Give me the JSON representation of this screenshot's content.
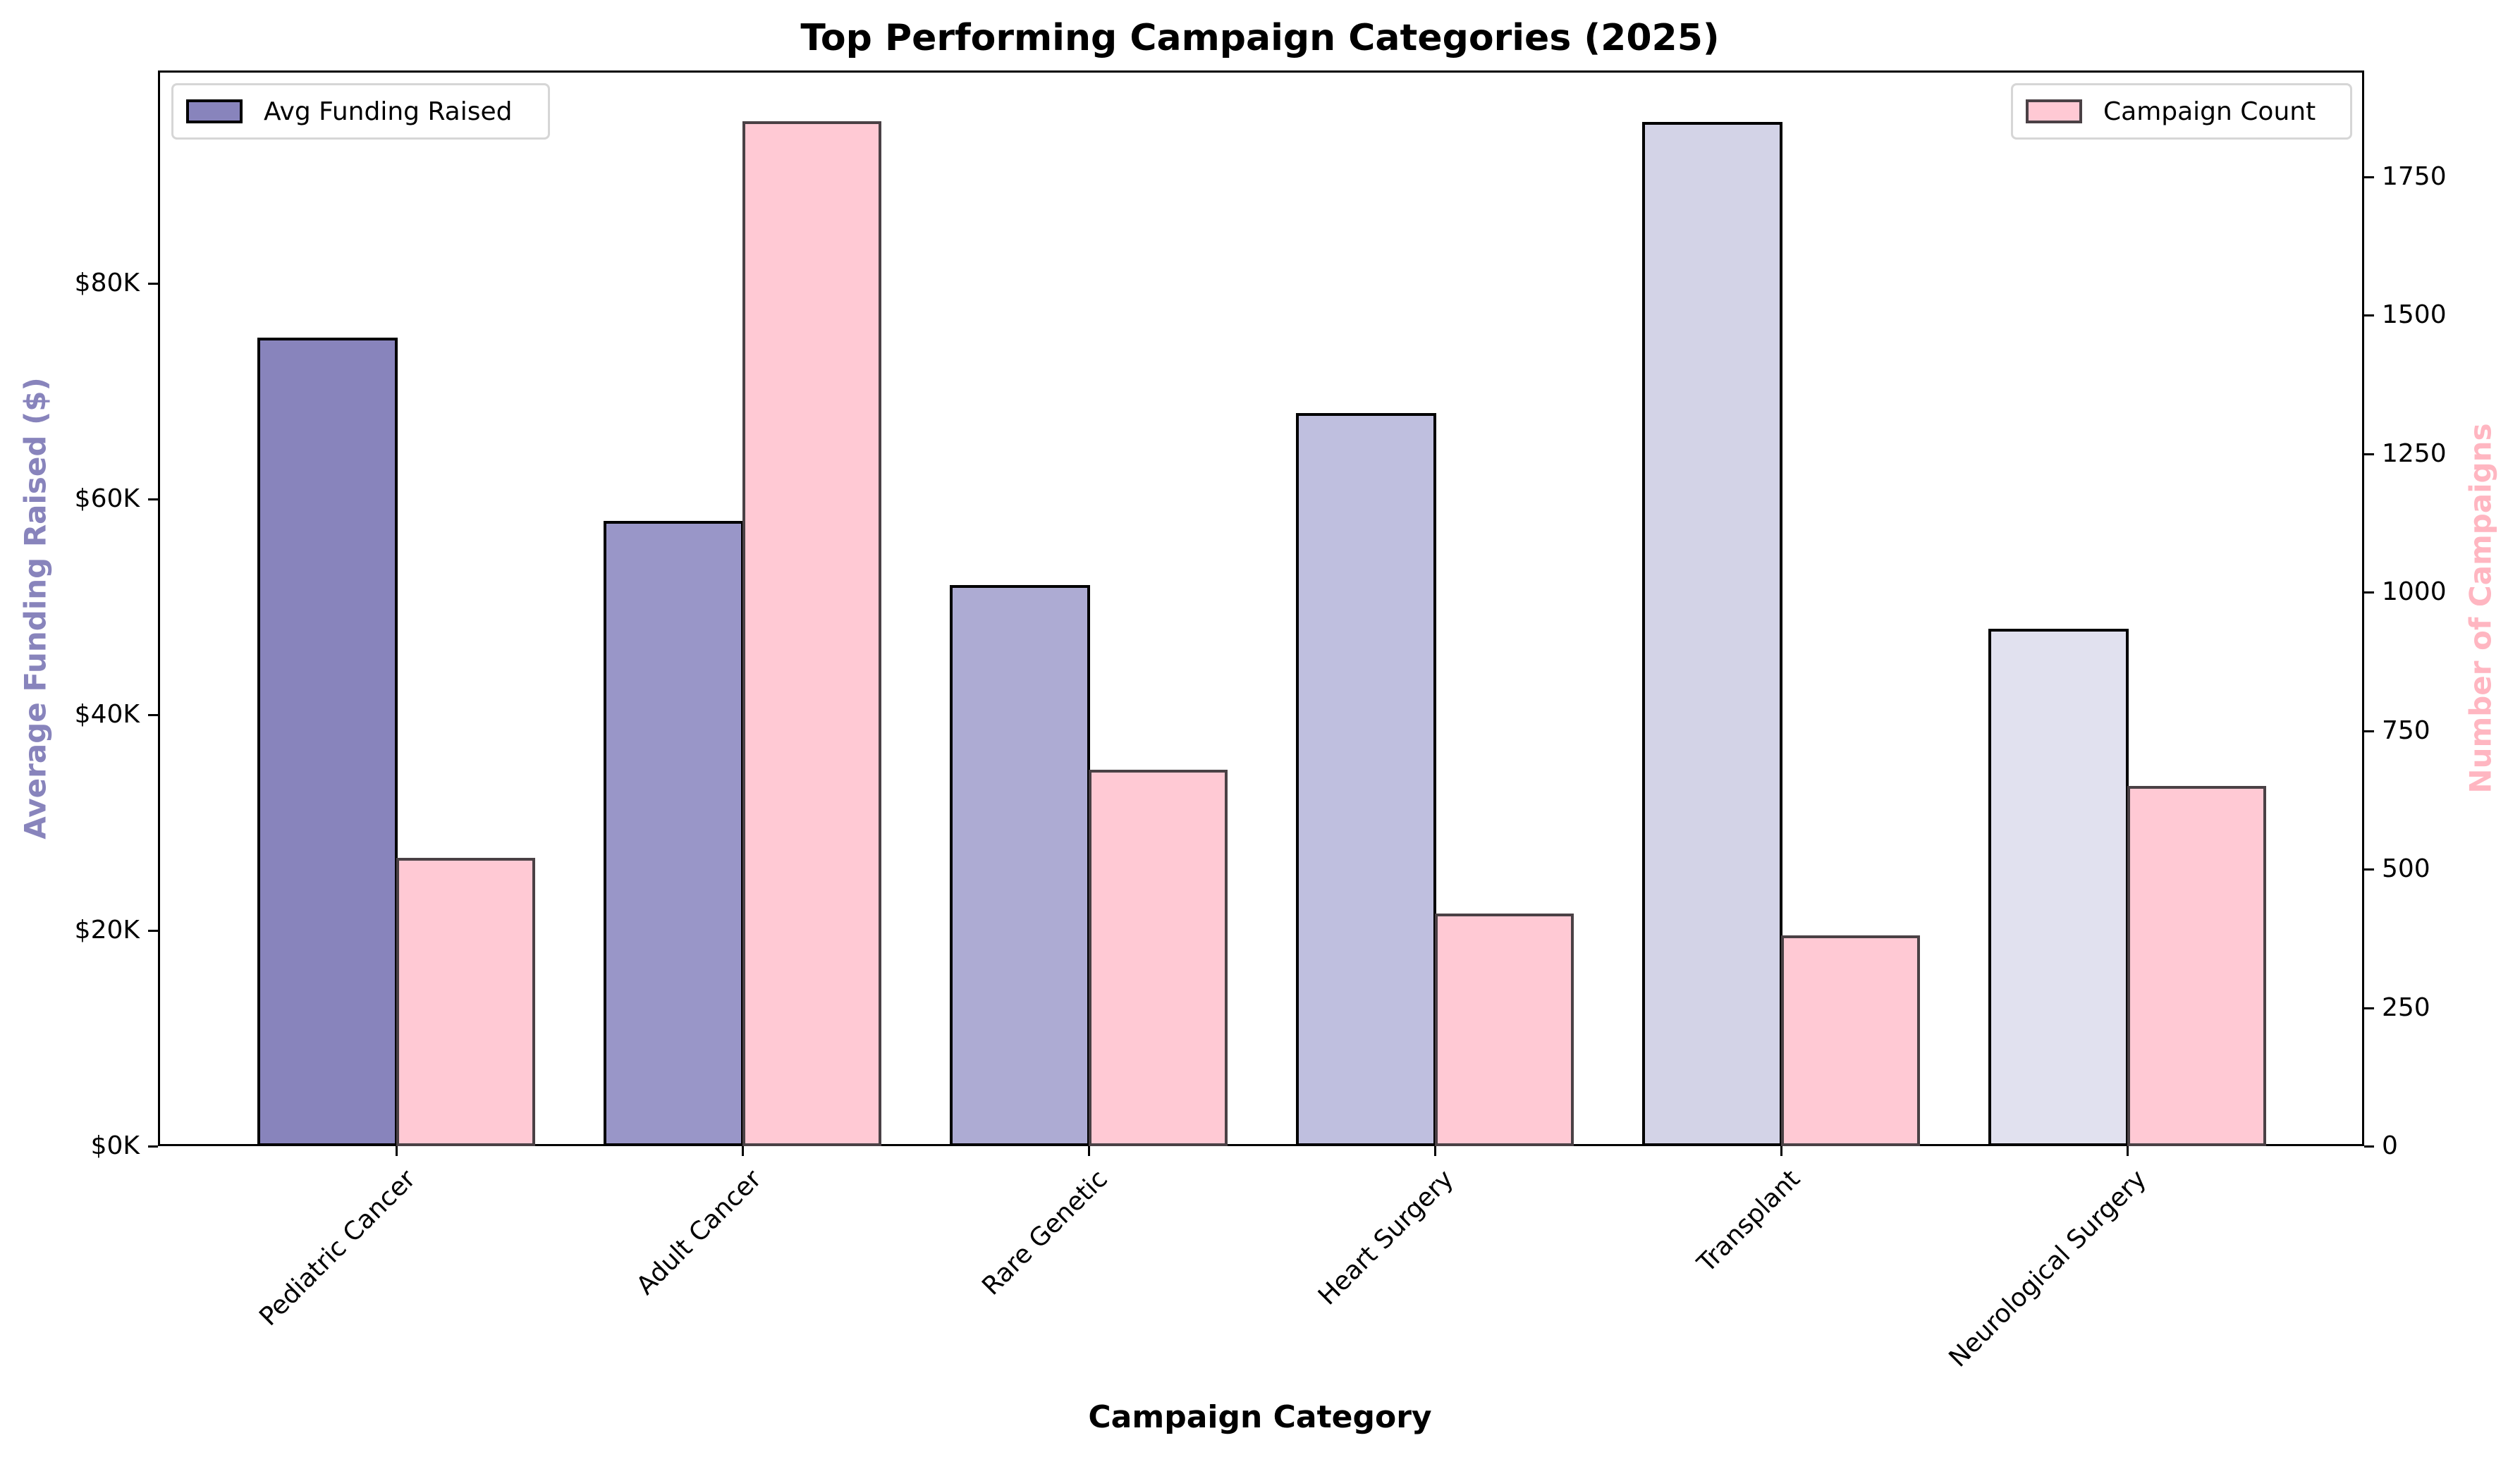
{
  "chart_data": {
    "type": "bar",
    "title": "Top Performing Campaign Categories (2025)",
    "xlabel": "Campaign Category",
    "ylabel": "Average Funding Raised ($)",
    "ylabel_right": "Number of Campaigns",
    "categories": [
      "Pediatric Cancer",
      "Adult Cancer",
      "Rare Genetic",
      "Heart Surgery",
      "Transplant",
      "Neurological Surgery"
    ],
    "series": [
      {
        "name": "Avg Funding Raised",
        "axis": "left",
        "values": [
          75000,
          58000,
          52000,
          68000,
          95000,
          48000
        ],
        "colors": [
          "#8884bc",
          "#9996c8",
          "#adabd3",
          "#bfbfdf",
          "#d3d3e7",
          "#e1e1ef"
        ],
        "edgecolor": "#000000"
      },
      {
        "name": "Campaign Count",
        "axis": "right",
        "values": [
          520,
          1850,
          680,
          420,
          380,
          650
        ],
        "color": "#ffc9d4",
        "edgecolor": "#4a4145"
      }
    ],
    "ylim": [
      0,
      99750
    ],
    "ylim_right": [
      0,
      1942
    ],
    "yticks_left": [
      "$0K",
      "$20K",
      "$40K",
      "$60K",
      "$80K"
    ],
    "ytick_values_left": [
      0,
      20000,
      40000,
      60000,
      80000
    ],
    "yticks_right": [
      "0",
      "250",
      "500",
      "750",
      "1000",
      "1250",
      "1500",
      "1750"
    ],
    "ytick_values_right": [
      0,
      250,
      500,
      750,
      1000,
      1250,
      1500,
      1750
    ],
    "legend": [
      {
        "label": "Avg Funding Raised",
        "position": "upper left"
      },
      {
        "label": "Campaign Count",
        "position": "upper right"
      }
    ],
    "grid": false
  },
  "colors": {
    "left_axis_label": "#8884bc",
    "right_axis_label": "#ffb6c1"
  }
}
